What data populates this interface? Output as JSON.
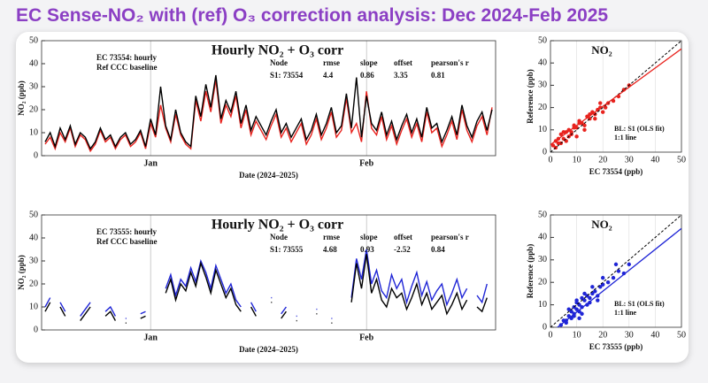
{
  "title": "EC Sense-NO₂ with (ref) O₃ correction analysis: Dec 2024-Feb 2025",
  "chart_data": [
    {
      "type": "line",
      "title": "Hourly NO₂ + O₃ corr",
      "xlabel": "Date (2024–2025)",
      "ylabel": "NO₂ (ppb)",
      "ylim": [
        0,
        50
      ],
      "yticks": [
        0,
        10,
        20,
        30,
        40,
        50
      ],
      "categories": [
        null,
        null,
        null,
        null,
        null,
        null,
        null,
        null,
        null,
        null,
        null,
        null,
        null,
        null,
        null,
        null,
        null,
        null,
        null,
        null,
        null,
        "Jan",
        null,
        null,
        null,
        null,
        null,
        null,
        null,
        null,
        null,
        null,
        null,
        null,
        null,
        null,
        null,
        null,
        null,
        null,
        null,
        null,
        null,
        null,
        null,
        null,
        null,
        null,
        null,
        null,
        null,
        null,
        null,
        null,
        null,
        null,
        null,
        null,
        null,
        null,
        null,
        null,
        null,
        null,
        "Feb",
        null,
        null,
        null,
        null,
        null,
        null,
        null,
        null,
        null,
        null,
        null,
        null,
        null,
        null,
        null,
        null,
        null,
        null,
        null,
        null,
        null,
        null,
        null,
        null,
        null
      ],
      "series": [
        {
          "name": "EC 73554: hourly",
          "color": "#e8231e",
          "values": [
            5,
            8,
            3,
            10,
            6,
            12,
            4,
            9,
            7,
            2,
            5,
            11,
            6,
            8,
            3,
            7,
            9,
            4,
            6,
            10,
            3,
            14,
            8,
            22,
            12,
            6,
            18,
            9,
            5,
            3,
            24,
            15,
            28,
            19,
            33,
            14,
            22,
            17,
            26,
            12,
            20,
            9,
            15,
            11,
            7,
            13,
            18,
            8,
            12,
            6,
            10,
            14,
            5,
            9,
            16,
            7,
            12,
            19,
            8,
            11,
            25,
            10,
            14,
            6,
            28,
            12,
            9,
            17,
            7,
            13,
            5,
            11,
            16,
            8,
            14,
            6,
            19,
            10,
            12,
            4,
            9,
            15,
            7,
            20,
            11,
            6,
            13,
            17,
            9,
            21
          ]
        },
        {
          "name": "Ref CCC baseline",
          "color": "#000000",
          "values": [
            6,
            10,
            4,
            12,
            7,
            13,
            5,
            10,
            8,
            3,
            6,
            12,
            7,
            9,
            4,
            8,
            10,
            5,
            7,
            11,
            4,
            16,
            9,
            30,
            13,
            7,
            20,
            10,
            6,
            4,
            26,
            17,
            31,
            21,
            35,
            16,
            24,
            19,
            28,
            14,
            22,
            11,
            17,
            13,
            9,
            15,
            20,
            10,
            14,
            8,
            12,
            16,
            7,
            11,
            18,
            9,
            14,
            21,
            10,
            13,
            27,
            12,
            34,
            8,
            26,
            14,
            11,
            19,
            9,
            15,
            7,
            13,
            18,
            10,
            16,
            8,
            21,
            12,
            14,
            6,
            11,
            17,
            9,
            22,
            13,
            8,
            15,
            19,
            11,
            20
          ]
        }
      ],
      "stats": {
        "columns": [
          "Node",
          "rmse",
          "slope",
          "offset",
          "pearson's r"
        ],
        "rows": [
          [
            "S1: 73554",
            4.4,
            0.86,
            3.35,
            0.81
          ]
        ]
      }
    },
    {
      "type": "scatter",
      "title": "NO₂",
      "xlabel": "EC 73554  (ppb)",
      "ylabel": "Reference (ppb)",
      "xlim": [
        0,
        50
      ],
      "xticks": [
        0,
        10,
        20,
        30,
        40,
        50
      ],
      "ylim": [
        0,
        50
      ],
      "yticks": [
        0,
        10,
        20,
        30,
        40,
        50
      ],
      "series": [
        {
          "color": "#e8231e",
          "x": [
            1,
            2,
            3,
            4,
            5,
            6,
            7,
            8,
            9,
            10,
            11,
            12,
            13,
            14,
            15,
            16,
            17,
            18,
            19,
            20,
            22,
            24,
            26,
            28,
            30,
            3,
            5,
            7,
            9,
            11,
            13,
            15,
            17,
            19,
            21,
            2,
            4,
            6,
            8,
            10
          ],
          "y": [
            3,
            5,
            4,
            8,
            6,
            9,
            10,
            8,
            12,
            11,
            14,
            13,
            12,
            16,
            15,
            18,
            17,
            19,
            20,
            18,
            22,
            23,
            25,
            28,
            30,
            6,
            9,
            7,
            11,
            13,
            10,
            17,
            15,
            22,
            20,
            2,
            4,
            5,
            9,
            7
          ]
        }
      ],
      "fit": {
        "name": "BL: S1 (OLS fit)",
        "slope": 0.86,
        "offset": 3.35,
        "color": "#e8231e"
      },
      "identity_line": "1:1 line"
    },
    {
      "type": "line",
      "title": "Hourly NO₂ + O₃ corr",
      "xlabel": "Date (2024–2025)",
      "ylabel": "NO₂ (ppb)",
      "ylim": [
        0,
        50
      ],
      "yticks": [
        0,
        10,
        20,
        30,
        40,
        50
      ],
      "categories": [
        null,
        null,
        null,
        null,
        null,
        null,
        null,
        null,
        null,
        null,
        null,
        null,
        null,
        null,
        null,
        null,
        null,
        null,
        null,
        null,
        null,
        "Jan",
        null,
        null,
        null,
        null,
        null,
        null,
        null,
        null,
        null,
        null,
        null,
        null,
        null,
        null,
        null,
        null,
        null,
        null,
        null,
        null,
        null,
        null,
        null,
        null,
        null,
        null,
        null,
        null,
        null,
        null,
        null,
        null,
        null,
        null,
        null,
        null,
        null,
        null,
        null,
        null,
        null,
        null,
        "Feb",
        null,
        null,
        null,
        null,
        null,
        null,
        null,
        null,
        null,
        null,
        null,
        null,
        null,
        null,
        null,
        null,
        null,
        null,
        null,
        null,
        null,
        null,
        null,
        null,
        null
      ],
      "series": [
        {
          "name": "EC 73555: hourly",
          "color": "#1f25d6",
          "values": [
            10,
            14,
            null,
            12,
            8,
            null,
            null,
            6,
            9,
            12,
            null,
            null,
            8,
            10,
            6,
            null,
            5,
            null,
            null,
            7,
            8,
            null,
            null,
            null,
            18,
            24,
            15,
            22,
            19,
            27,
            21,
            30,
            25,
            18,
            28,
            22,
            16,
            20,
            13,
            10,
            null,
            12,
            8,
            null,
            null,
            14,
            null,
            7,
            10,
            null,
            6,
            null,
            null,
            null,
            9,
            null,
            null,
            5,
            null,
            null,
            null,
            14,
            31,
            22,
            35,
            20,
            26,
            17,
            14,
            24,
            18,
            22,
            12,
            19,
            25,
            15,
            21,
            13,
            17,
            20,
            11,
            16,
            22,
            14,
            18,
            null,
            15,
            12,
            20,
            null
          ]
        },
        {
          "name": "Ref CCC baseline",
          "color": "#000000",
          "values": [
            8,
            12,
            null,
            10,
            6,
            null,
            null,
            4,
            7,
            10,
            null,
            null,
            6,
            8,
            4,
            null,
            3,
            null,
            null,
            5,
            6,
            null,
            null,
            null,
            16,
            22,
            13,
            20,
            17,
            25,
            19,
            29,
            23,
            16,
            26,
            20,
            14,
            18,
            11,
            8,
            null,
            10,
            6,
            null,
            null,
            12,
            null,
            5,
            8,
            null,
            4,
            null,
            null,
            null,
            7,
            null,
            null,
            3,
            null,
            null,
            null,
            12,
            29,
            18,
            33,
            16,
            22,
            13,
            10,
            18,
            14,
            16,
            9,
            14,
            20,
            11,
            16,
            9,
            12,
            15,
            7,
            11,
            16,
            9,
            13,
            null,
            10,
            8,
            14,
            null
          ]
        }
      ],
      "stats": {
        "columns": [
          "Node",
          "rmse",
          "slope",
          "offset",
          "pearson's r"
        ],
        "rows": [
          [
            "S1: 73555",
            4.68,
            0.93,
            -2.52,
            0.84
          ]
        ]
      }
    },
    {
      "type": "scatter",
      "title": "NO₂",
      "xlabel": "EC 73555  (ppb)",
      "ylabel": "Reference (ppb)",
      "xlim": [
        0,
        50
      ],
      "xticks": [
        0,
        10,
        20,
        30,
        40,
        50
      ],
      "ylim": [
        0,
        50
      ],
      "yticks": [
        0,
        10,
        20,
        30,
        40,
        50
      ],
      "series": [
        {
          "color": "#1f25d6",
          "x": [
            4,
            5,
            6,
            7,
            8,
            8,
            9,
            9,
            10,
            10,
            11,
            11,
            12,
            12,
            13,
            14,
            14,
            15,
            16,
            17,
            18,
            19,
            20,
            22,
            24,
            26,
            28,
            30,
            6,
            9,
            10,
            12,
            13,
            15,
            16,
            18,
            20,
            11,
            7,
            25
          ],
          "y": [
            1,
            3,
            2,
            5,
            4,
            7,
            6,
            9,
            8,
            11,
            7,
            10,
            9,
            13,
            12,
            10,
            14,
            13,
            15,
            16,
            14,
            18,
            19,
            20,
            22,
            25,
            24,
            28,
            3,
            5,
            12,
            6,
            15,
            11,
            18,
            12,
            22,
            4,
            8,
            28
          ]
        }
      ],
      "fit": {
        "name": "BL: S1 (OLS fit)",
        "slope": 0.93,
        "offset": -2.52,
        "color": "#1f25d6"
      },
      "identity_line": "1:1 line"
    }
  ]
}
